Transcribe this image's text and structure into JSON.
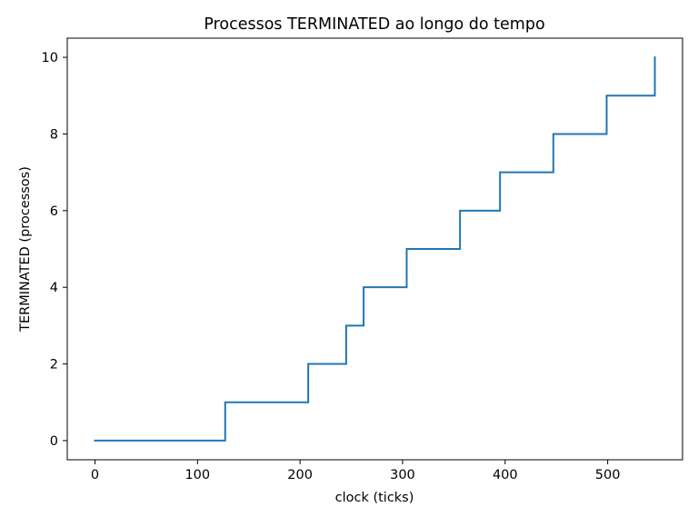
{
  "chart_data": {
    "type": "line",
    "title": "Processos TERMINATED ao longo do tempo",
    "xlabel": "clock (ticks)",
    "ylabel": "TERMINATED (processos)",
    "xlim": [
      -27,
      573
    ],
    "ylim": [
      -0.5,
      10.5
    ],
    "xticks": [
      0,
      100,
      200,
      300,
      400,
      500
    ],
    "yticks": [
      0,
      2,
      4,
      6,
      8,
      10
    ],
    "xtick_labels": [
      "0",
      "100",
      "200",
      "300",
      "400",
      "500"
    ],
    "ytick_labels": [
      "0",
      "2",
      "4",
      "6",
      "8",
      "10"
    ],
    "grid": false,
    "series": [
      {
        "color": "#1f77b4",
        "step": true,
        "x": [
          0,
          127,
          127,
          208,
          208,
          245,
          245,
          262,
          262,
          304,
          304,
          356,
          356,
          395,
          395,
          447,
          447,
          499,
          499,
          546,
          546
        ],
        "y": [
          0,
          0,
          1,
          1,
          2,
          2,
          3,
          3,
          4,
          4,
          5,
          5,
          6,
          6,
          7,
          7,
          8,
          8,
          9,
          9,
          10
        ]
      }
    ]
  }
}
